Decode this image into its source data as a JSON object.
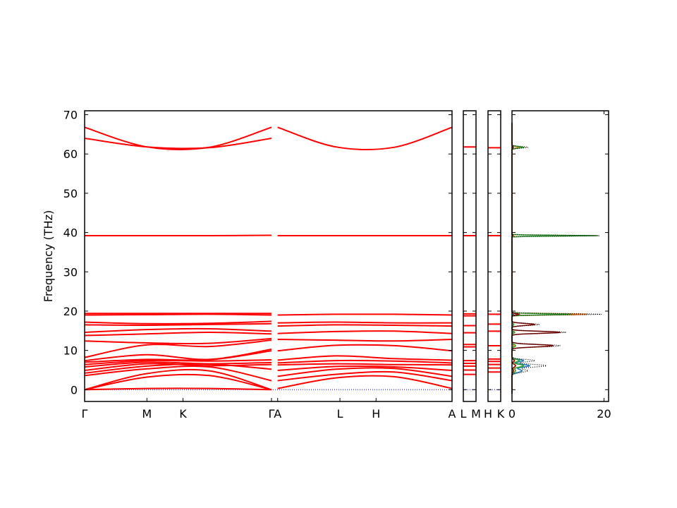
{
  "chart_data": {
    "type": "line",
    "ylabel": "Frequency (THz)",
    "ylim": [
      -3,
      71
    ],
    "yticks": [
      0,
      10,
      20,
      30,
      40,
      50,
      60,
      70
    ],
    "colors": {
      "band": "#ff0000",
      "zero_line": "#0000ff",
      "frame": "#000000"
    },
    "panels": [
      {
        "id": "main",
        "x_labels": [
          "Γ",
          "M",
          "K",
          "Γ",
          "A",
          "L",
          "H",
          "A"
        ],
        "x_ticks": [
          0,
          1,
          1.58,
          3,
          3.1,
          4.1,
          4.68,
          5.9
        ],
        "xlim": [
          0,
          5.9
        ]
      },
      {
        "id": "lm",
        "x_labels": [
          "L",
          "M"
        ],
        "x_ticks": [
          0,
          1
        ],
        "xlim": [
          0,
          1
        ]
      },
      {
        "id": "hk",
        "x_labels": [
          "H",
          "K"
        ],
        "x_ticks": [
          0,
          1
        ],
        "xlim": [
          0,
          1
        ]
      }
    ],
    "band_segments": [
      {
        "panel": "main",
        "x0": 0,
        "x1": 3,
        "path": "GMKG"
      },
      {
        "panel": "main",
        "x0": 3.1,
        "x1": 5.9,
        "path": "ALHA"
      }
    ],
    "bands_gamma_M_K_gamma": [
      [
        0,
        0.3,
        0.3,
        0
      ],
      [
        0,
        3.2,
        3.6,
        0
      ],
      [
        0,
        4.1,
        4.8,
        0
      ],
      [
        3.6,
        5.3,
        5.8,
        2.3
      ],
      [
        4.2,
        6.0,
        6.5,
        5.2
      ],
      [
        4.9,
        6.6,
        6.1,
        6.4
      ],
      [
        5.8,
        7.0,
        6.6,
        6.9
      ],
      [
        6.4,
        7.4,
        7.3,
        7.6
      ],
      [
        7.0,
        7.7,
        7.6,
        9.9
      ],
      [
        7.4,
        8.9,
        7.7,
        10.3
      ],
      [
        8.2,
        11.4,
        11.0,
        12.6
      ],
      [
        12.4,
        11.9,
        11.8,
        13.0
      ],
      [
        13.8,
        14.2,
        14.6,
        14.2
      ],
      [
        14.6,
        15.3,
        15.5,
        14.9
      ],
      [
        16.5,
        16.4,
        16.6,
        16.8
      ],
      [
        17.2,
        16.8,
        16.9,
        17.4
      ],
      [
        19.0,
        19.1,
        19.2,
        19.0
      ],
      [
        19.4,
        19.4,
        19.4,
        19.4
      ],
      [
        39.2,
        39.2,
        39.2,
        39.3
      ],
      [
        64.0,
        61.8,
        61.6,
        64.0
      ],
      [
        66.8,
        61.8,
        61.7,
        66.8
      ]
    ],
    "bands_A_L_H_A": [
      [
        0.3,
        3.0,
        3.3,
        0.3
      ],
      [
        2.3,
        3.9,
        4.5,
        2.3
      ],
      [
        3.4,
        5.2,
        5.4,
        3.4
      ],
      [
        4.9,
        5.9,
        5.8,
        4.9
      ],
      [
        6.3,
        6.6,
        6.4,
        6.3
      ],
      [
        6.8,
        7.4,
        7.3,
        6.8
      ],
      [
        7.5,
        8.6,
        7.9,
        7.5
      ],
      [
        9.9,
        11.3,
        11.2,
        9.9
      ],
      [
        12.8,
        12.6,
        12.4,
        12.8
      ],
      [
        14.3,
        14.8,
        14.9,
        14.3
      ],
      [
        16.2,
        16.5,
        16.4,
        16.2
      ],
      [
        17.0,
        17.2,
        17.0,
        17.0
      ],
      [
        19.0,
        19.2,
        19.2,
        19.0
      ],
      [
        39.2,
        39.2,
        39.2,
        39.2
      ],
      [
        66.8,
        61.8,
        61.7,
        66.8
      ]
    ],
    "flat_bands_LM": [
      3.9,
      5.0,
      6.0,
      6.7,
      7.4,
      10.9,
      11.5,
      14.5,
      16.3,
      18.8,
      19.3,
      39.2,
      61.8
    ],
    "flat_bands_HK": [
      4.5,
      5.5,
      6.4,
      7.2,
      7.8,
      11.2,
      14.9,
      16.7,
      19.2,
      39.2,
      61.6
    ],
    "dos_panel": {
      "xlim": [
        0,
        21
      ],
      "xticks": [
        0,
        20
      ],
      "xtick_labels": [
        "0",
        "20"
      ],
      "total_color": "#000000",
      "partial_colors": [
        "#1f77b4",
        "#ff7f0e",
        "#2ca02c",
        "#8b0000"
      ],
      "peaks": [
        {
          "center": 4.8,
          "width": 0.8,
          "total": 3.5,
          "partials": [
            2.2,
            0.4,
            0.8,
            0.3
          ]
        },
        {
          "center": 6.1,
          "width": 0.7,
          "total": 7.5,
          "partials": [
            3.8,
            0.8,
            2.5,
            0.8
          ]
        },
        {
          "center": 7.4,
          "width": 0.6,
          "total": 5.0,
          "partials": [
            2.5,
            0.6,
            1.6,
            0.5
          ]
        },
        {
          "center": 11.2,
          "width": 0.6,
          "total": 10.5,
          "partials": [
            0.3,
            0.4,
            0.8,
            9.0
          ]
        },
        {
          "center": 14.6,
          "width": 0.5,
          "total": 11.8,
          "partials": [
            0.2,
            0.5,
            0.6,
            10.5
          ]
        },
        {
          "center": 16.6,
          "width": 0.5,
          "total": 6.0,
          "partials": [
            0.2,
            0.3,
            0.4,
            5.0
          ]
        },
        {
          "center": 19.2,
          "width": 0.3,
          "total": 19.5,
          "partials": [
            0.3,
            16.5,
            13.0,
            1.5
          ]
        },
        {
          "center": 39.2,
          "width": 0.2,
          "total": 19.0,
          "partials": [
            0.1,
            0.4,
            18.5,
            0.2
          ]
        },
        {
          "center": 61.7,
          "width": 0.4,
          "total": 3.5,
          "partials": [
            0.1,
            1.5,
            2.5,
            0.3
          ]
        }
      ]
    }
  }
}
